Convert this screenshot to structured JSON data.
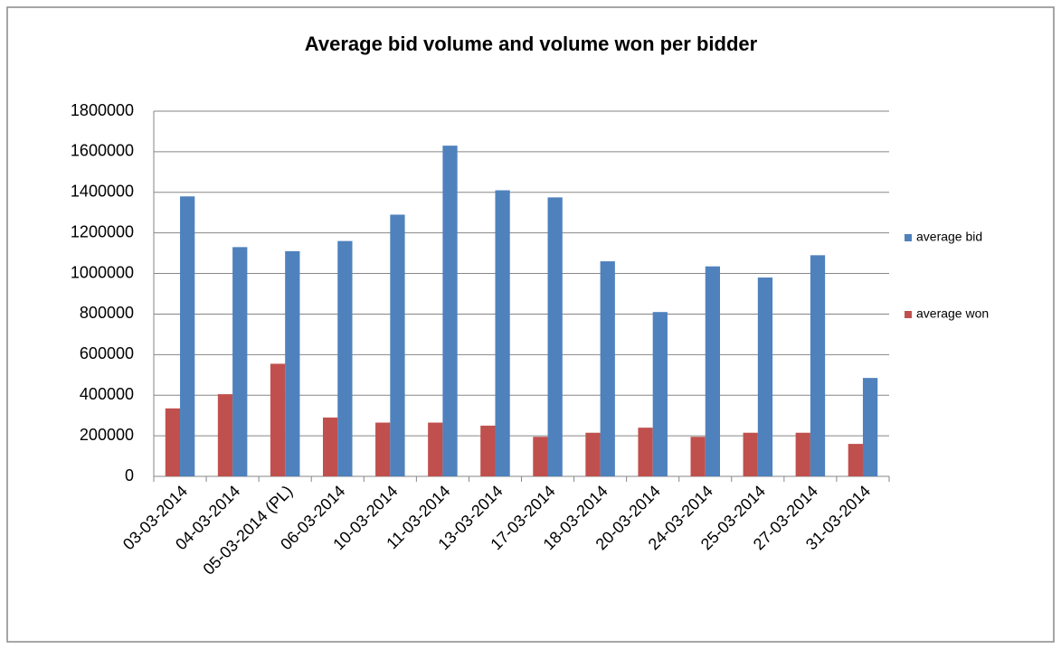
{
  "chart_data": {
    "type": "bar",
    "title": "Average bid volume and volume won per bidder",
    "categories": [
      "03-03-2014",
      "04-03-2014",
      "05-03-2014 (PL)",
      "06-03-2014",
      "10-03-2014",
      "11-03-2014",
      "13-03-2014",
      "17-03-2014",
      "18-03-2014",
      "20-03-2014",
      "24-03-2014",
      "25-03-2014",
      "27-03-2014",
      "31-03-2014"
    ],
    "series": [
      {
        "name": "average won",
        "color": "#c0504d",
        "values": [
          335000,
          405000,
          555000,
          290000,
          265000,
          265000,
          250000,
          195000,
          215000,
          240000,
          195000,
          215000,
          215000,
          160000
        ]
      },
      {
        "name": "average bid",
        "color": "#4f81bd",
        "values": [
          1380000,
          1130000,
          1110000,
          1160000,
          1290000,
          1630000,
          1410000,
          1375000,
          1060000,
          810000,
          1035000,
          980000,
          1090000,
          485000
        ]
      }
    ],
    "ylim": [
      0,
      1800000
    ],
    "yticks": [
      0,
      200000,
      400000,
      600000,
      800000,
      1000000,
      1200000,
      1400000,
      1600000,
      1800000
    ],
    "grid": true,
    "legend": "right"
  }
}
